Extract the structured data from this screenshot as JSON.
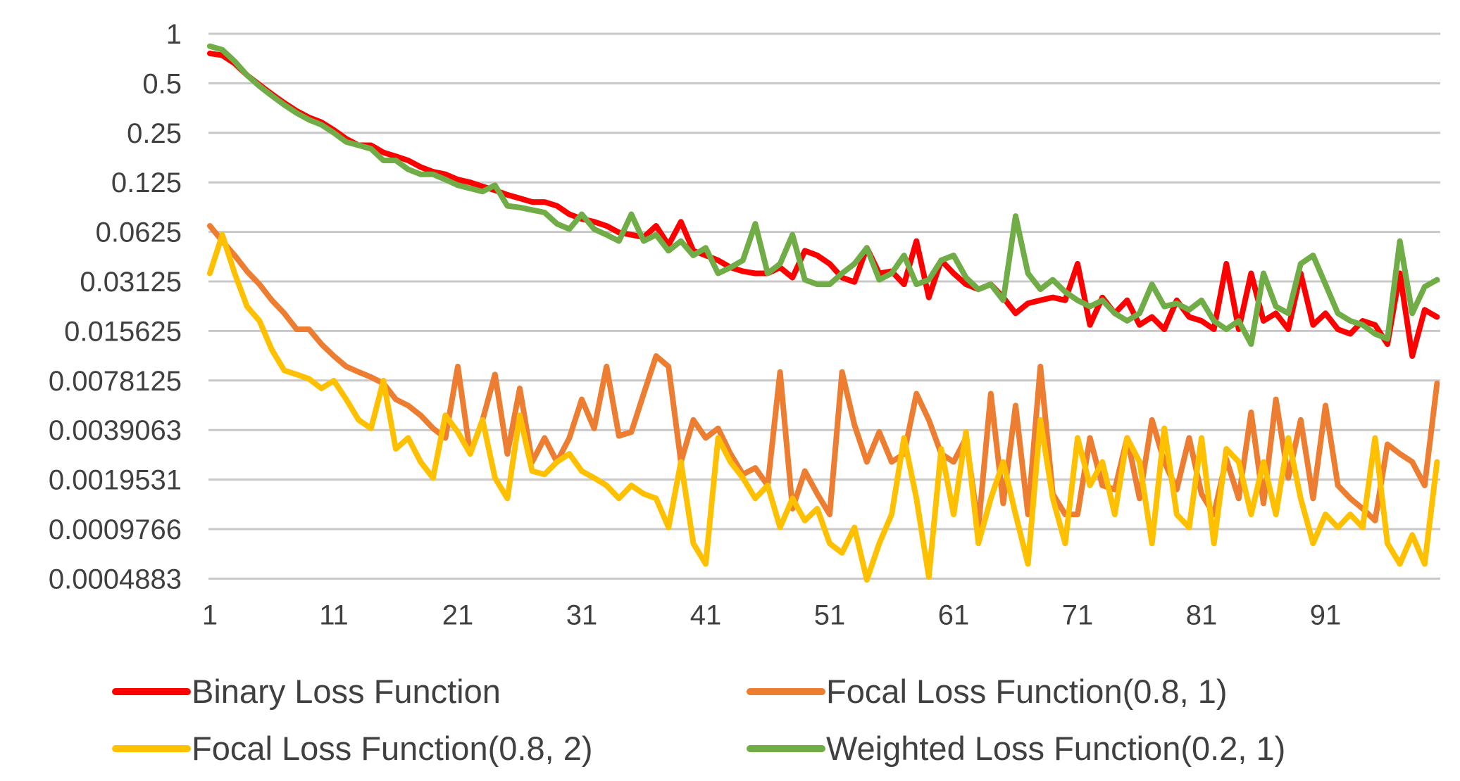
{
  "chart_data": {
    "type": "line",
    "title": "",
    "xlabel": "",
    "ylabel": "",
    "y_scale": "log2",
    "ylim": [
      0.0004883,
      1
    ],
    "xlim": [
      1,
      100
    ],
    "x_tick_labels": [
      "1",
      "11",
      "21",
      "31",
      "41",
      "51",
      "61",
      "71",
      "81",
      "91"
    ],
    "y_tick_labels": [
      "1",
      "0.5",
      "0.25",
      "0.125",
      "0.0625",
      "0.03125",
      "0.015625",
      "0.0078125",
      "0.0039063",
      "0.0019531",
      "0.0009766",
      "0.0004883"
    ],
    "grid": true,
    "legend_position": "bottom",
    "series": [
      {
        "name": "Binary Loss Function",
        "color": "#ff0000",
        "values": [
          0.76,
          0.74,
          0.66,
          0.56,
          0.49,
          0.43,
          0.38,
          0.34,
          0.31,
          0.29,
          0.26,
          0.23,
          0.21,
          0.21,
          0.19,
          0.18,
          0.17,
          0.155,
          0.145,
          0.14,
          0.13,
          0.125,
          0.118,
          0.112,
          0.105,
          0.1,
          0.095,
          0.095,
          0.09,
          0.08,
          0.075,
          0.072,
          0.068,
          0.062,
          0.06,
          0.058,
          0.068,
          0.052,
          0.072,
          0.048,
          0.045,
          0.042,
          0.038,
          0.036,
          0.035,
          0.035,
          0.038,
          0.033,
          0.048,
          0.045,
          0.04,
          0.033,
          0.031,
          0.05,
          0.035,
          0.036,
          0.03,
          0.055,
          0.025,
          0.042,
          0.035,
          0.03,
          0.028,
          0.03,
          0.025,
          0.02,
          0.023,
          0.024,
          0.025,
          0.024,
          0.04,
          0.017,
          0.025,
          0.02,
          0.024,
          0.017,
          0.019,
          0.016,
          0.024,
          0.019,
          0.018,
          0.016,
          0.04,
          0.016,
          0.035,
          0.018,
          0.02,
          0.016,
          0.035,
          0.017,
          0.02,
          0.016,
          0.015,
          0.018,
          0.017,
          0.013,
          0.035,
          0.011,
          0.021,
          0.019
        ]
      },
      {
        "name": "Focal Loss Function(0.8, 1)",
        "color": "#ed7d31",
        "values": [
          0.068,
          0.055,
          0.045,
          0.036,
          0.03,
          0.024,
          0.02,
          0.016,
          0.016,
          0.013,
          0.011,
          0.0095,
          0.0088,
          0.0082,
          0.0075,
          0.006,
          0.0055,
          0.0048,
          0.004,
          0.0035,
          0.0095,
          0.0028,
          0.0045,
          0.0085,
          0.0028,
          0.007,
          0.0025,
          0.0035,
          0.0025,
          0.0035,
          0.006,
          0.004,
          0.0095,
          0.0036,
          0.0038,
          0.0065,
          0.011,
          0.0095,
          0.0025,
          0.0045,
          0.0035,
          0.004,
          0.0028,
          0.0021,
          0.0023,
          0.0018,
          0.0088,
          0.0013,
          0.0022,
          0.0016,
          0.0012,
          0.0088,
          0.0042,
          0.0025,
          0.0038,
          0.0025,
          0.0028,
          0.0065,
          0.0045,
          0.0028,
          0.0025,
          0.0035,
          0.001,
          0.0065,
          0.0014,
          0.0055,
          0.0012,
          0.0095,
          0.0016,
          0.0012,
          0.0012,
          0.0035,
          0.0018,
          0.0017,
          0.0035,
          0.0015,
          0.0045,
          0.0025,
          0.0017,
          0.0035,
          0.0016,
          0.0012,
          0.0026,
          0.0015,
          0.005,
          0.0014,
          0.006,
          0.002,
          0.0045,
          0.0015,
          0.0055,
          0.0018,
          0.0015,
          0.0013,
          0.0011,
          0.0032,
          0.0028,
          0.0025,
          0.0018,
          0.0075
        ]
      },
      {
        "name": "Focal Loss Function(0.8, 2)",
        "color": "#ffc000",
        "values": [
          0.035,
          0.06,
          0.035,
          0.022,
          0.018,
          0.012,
          0.009,
          0.0085,
          0.008,
          0.007,
          0.0078,
          0.006,
          0.0045,
          0.004,
          0.0078,
          0.003,
          0.0035,
          0.0025,
          0.002,
          0.0048,
          0.0038,
          0.0028,
          0.0045,
          0.002,
          0.0015,
          0.0048,
          0.0022,
          0.0021,
          0.0025,
          0.0028,
          0.0022,
          0.002,
          0.0018,
          0.0015,
          0.0018,
          0.0016,
          0.0015,
          0.001,
          0.0025,
          0.0008,
          0.0006,
          0.0035,
          0.0025,
          0.002,
          0.0015,
          0.0018,
          0.001,
          0.0015,
          0.0011,
          0.0013,
          0.0008,
          0.0007,
          0.001,
          0.00048,
          0.0008,
          0.0012,
          0.0035,
          0.0015,
          0.0005,
          0.003,
          0.0012,
          0.0038,
          0.0008,
          0.0015,
          0.0025,
          0.0012,
          0.0006,
          0.0045,
          0.0015,
          0.0008,
          0.0035,
          0.0018,
          0.0025,
          0.0012,
          0.0035,
          0.0025,
          0.0008,
          0.004,
          0.0012,
          0.001,
          0.0035,
          0.0008,
          0.003,
          0.0025,
          0.0012,
          0.0025,
          0.0012,
          0.0035,
          0.0015,
          0.0008,
          0.0012,
          0.001,
          0.0012,
          0.001,
          0.0035,
          0.0008,
          0.0006,
          0.0009,
          0.0006,
          0.0025
        ]
      },
      {
        "name": "Weighted Loss Function(0.2, 1)",
        "color": "#70ad47",
        "values": [
          0.84,
          0.8,
          0.68,
          0.56,
          0.48,
          0.42,
          0.37,
          0.33,
          0.3,
          0.28,
          0.25,
          0.22,
          0.21,
          0.2,
          0.17,
          0.17,
          0.15,
          0.14,
          0.14,
          0.13,
          0.12,
          0.115,
          0.11,
          0.12,
          0.09,
          0.088,
          0.085,
          0.082,
          0.07,
          0.065,
          0.08,
          0.065,
          0.06,
          0.055,
          0.08,
          0.055,
          0.06,
          0.048,
          0.055,
          0.045,
          0.05,
          0.035,
          0.038,
          0.042,
          0.07,
          0.035,
          0.04,
          0.06,
          0.032,
          0.03,
          0.03,
          0.035,
          0.04,
          0.05,
          0.032,
          0.035,
          0.045,
          0.03,
          0.032,
          0.042,
          0.045,
          0.033,
          0.028,
          0.03,
          0.024,
          0.078,
          0.035,
          0.028,
          0.032,
          0.027,
          0.024,
          0.022,
          0.024,
          0.02,
          0.018,
          0.02,
          0.03,
          0.022,
          0.023,
          0.021,
          0.024,
          0.018,
          0.016,
          0.018,
          0.013,
          0.035,
          0.022,
          0.02,
          0.04,
          0.045,
          0.03,
          0.02,
          0.018,
          0.017,
          0.015,
          0.014,
          0.055,
          0.02,
          0.029,
          0.032
        ]
      }
    ]
  }
}
